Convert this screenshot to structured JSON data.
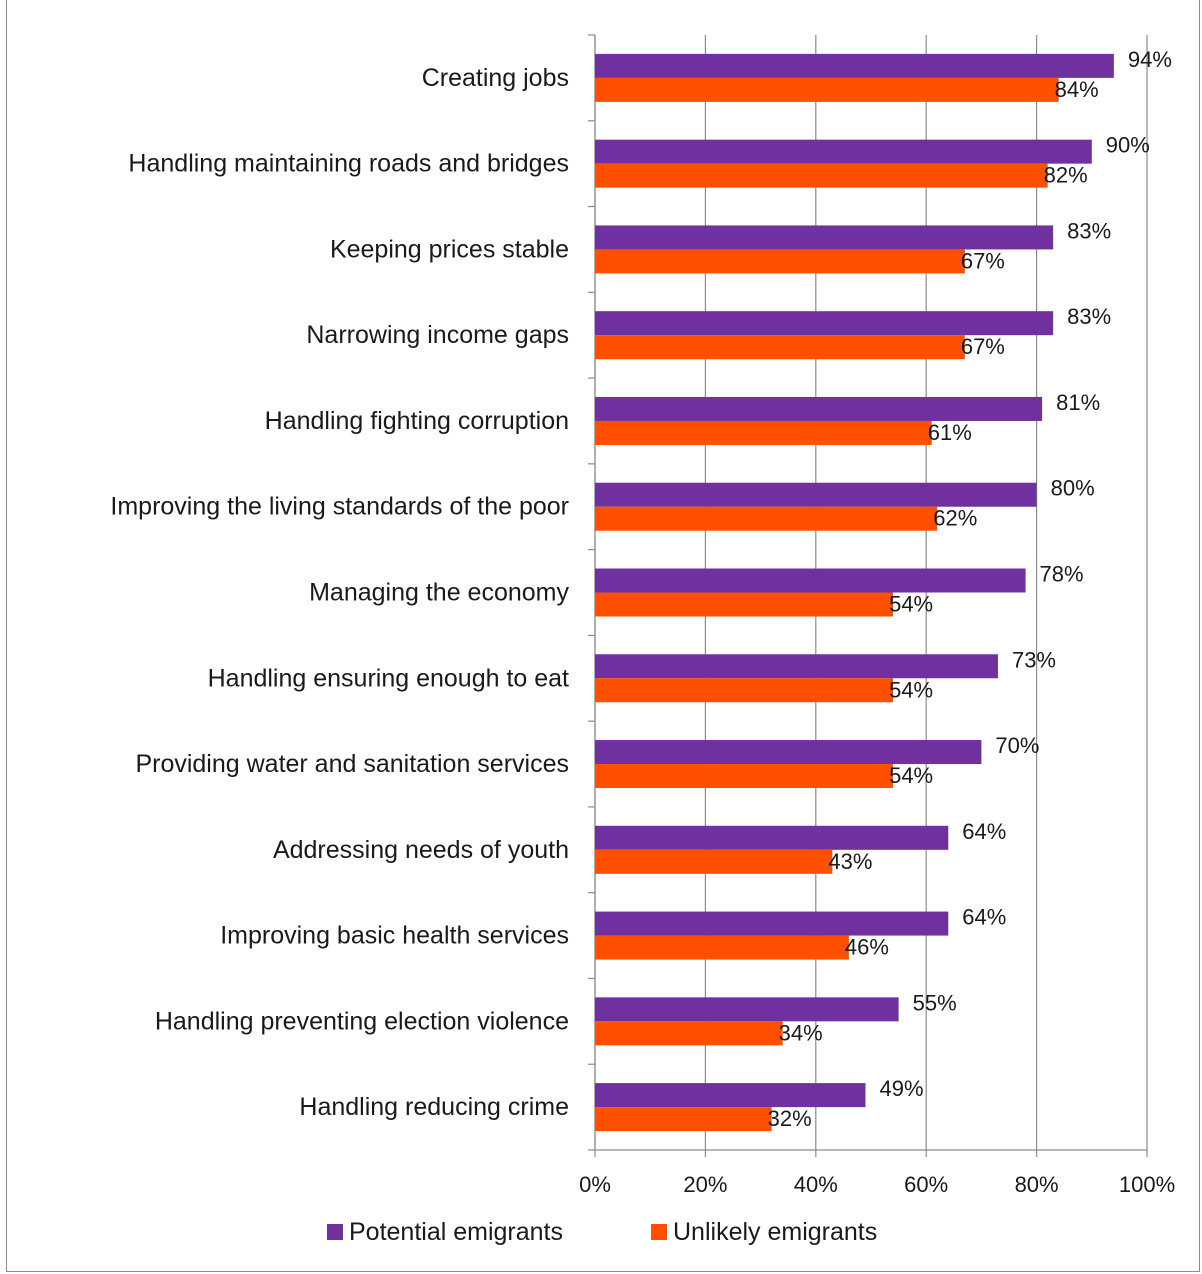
{
  "chart_data": {
    "type": "bar",
    "orientation": "horizontal",
    "categories": [
      "Creating jobs",
      "Handling maintaining roads and bridges",
      "Keeping prices stable",
      "Narrowing income gaps",
      "Handling fighting corruption",
      "Improving the living standards of the poor",
      "Managing the economy",
      "Handling ensuring enough to eat",
      "Providing water and sanitation services",
      "Addressing needs of youth",
      "Improving basic health services",
      "Handling preventing election violence",
      "Handling reducing crime"
    ],
    "series": [
      {
        "name": "Potential emigrants",
        "color": "#7030a0",
        "values": [
          94,
          90,
          83,
          83,
          81,
          80,
          78,
          73,
          70,
          64,
          64,
          55,
          49
        ],
        "labels": [
          "94%",
          "90%",
          "83%",
          "83%",
          "81%",
          "80%",
          "78%",
          "73%",
          "70%",
          "64%",
          "64%",
          "55%",
          "49%"
        ]
      },
      {
        "name": "Unlikely emigrants",
        "color": "#ff5000",
        "values": [
          84,
          82,
          67,
          67,
          61,
          62,
          54,
          54,
          54,
          43,
          46,
          34,
          32
        ],
        "labels": [
          "84%",
          "82%",
          "67%",
          "67%",
          "61%",
          "62%",
          "54%",
          "54%",
          "54%",
          "43%",
          "46%",
          "34%",
          "32%"
        ]
      }
    ],
    "xlim": [
      0,
      100
    ],
    "xticks": [
      "0%",
      "20%",
      "40%",
      "60%",
      "80%",
      "100%"
    ],
    "grid": "vertical",
    "legend_position": "bottom",
    "gridline_color": "#8c8c8c",
    "axis_color": "#8c8c8c"
  }
}
